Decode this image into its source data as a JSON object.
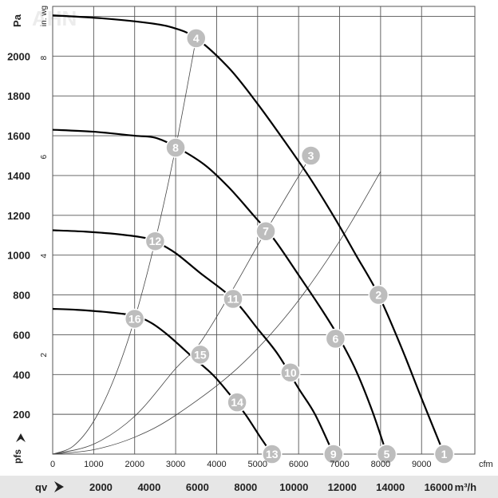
{
  "chart_data": {
    "type": "line",
    "title": "",
    "axes": {
      "pressure_pa": {
        "label": "Pa",
        "ticks": [
          200,
          400,
          600,
          800,
          1000,
          1200,
          1400,
          1600,
          1800,
          2000
        ],
        "range": [
          0,
          2250
        ]
      },
      "pressure_inwg": {
        "label": "in. wg",
        "ticks": [
          2,
          4,
          6,
          8
        ],
        "range": [
          0,
          9.04
        ]
      },
      "flow_cfm": {
        "label": "cfm",
        "ticks": [
          0,
          1000,
          2000,
          3000,
          4000,
          5000,
          6000,
          7000,
          8000,
          9000
        ],
        "range": [
          0,
          10300
        ]
      },
      "flow_m3h": {
        "label": "m³/h",
        "ticks": [
          2000,
          4000,
          6000,
          8000,
          10000,
          12000,
          14000,
          16000
        ],
        "range": [
          0,
          17500
        ]
      }
    },
    "axis_labels": {
      "y_bottom": "pfs",
      "x_bottom": "qv",
      "pa": "Pa",
      "inwg": "in. wg",
      "cfm": "cfm",
      "m3h_suffix": "m³/h"
    },
    "grid": true,
    "series": [
      {
        "curve": "speed-1",
        "x_cfm": [
          0,
          1200,
          2200,
          2900,
          3500,
          4300,
          5000,
          5700,
          6300,
          6900,
          7400,
          7950,
          8500,
          9000,
          9550
        ],
        "y_pa": [
          2205,
          2190,
          2170,
          2145,
          2090,
          1940,
          1760,
          1560,
          1380,
          1180,
          1000,
          800,
          540,
          280,
          0
        ]
      },
      {
        "curve": "speed-2",
        "x_cfm": [
          0,
          1000,
          2000,
          2500,
          3000,
          3700,
          4300,
          4900,
          5400,
          6000,
          6600,
          7000,
          7400,
          7800,
          8150
        ],
        "y_pa": [
          1630,
          1620,
          1600,
          1590,
          1545,
          1455,
          1340,
          1200,
          1080,
          900,
          715,
          580,
          420,
          215,
          0
        ]
      },
      {
        "curve": "speed-3",
        "x_cfm": [
          0,
          800,
          1600,
          2300,
          2500,
          3000,
          3600,
          4400,
          5000,
          5500,
          6000,
          6400,
          6850
        ],
        "y_pa": [
          1125,
          1118,
          1105,
          1085,
          1070,
          1010,
          910,
          780,
          630,
          500,
          330,
          200,
          0
        ]
      },
      {
        "curve": "speed-4",
        "x_cfm": [
          0,
          600,
          1400,
          2000,
          2400,
          2800,
          3400,
          3900,
          4300,
          4700,
          5050,
          5350
        ],
        "y_pa": [
          730,
          725,
          712,
          695,
          660,
          600,
          490,
          400,
          305,
          200,
          90,
          0
        ]
      },
      {
        "curve": "system-a",
        "x_cfm": [
          0,
          500,
          1000,
          1500,
          2000,
          2500,
          3000,
          3500
        ],
        "y_pa": [
          0,
          40,
          165,
          380,
          680,
          1070,
          1540,
          2090
        ]
      },
      {
        "curve": "system-b",
        "x_cfm": [
          0,
          1000,
          2000,
          3000,
          3600,
          4400,
          5200,
          6300
        ],
        "y_pa": [
          0,
          50,
          190,
          430,
          560,
          830,
          1120,
          1500
        ]
      },
      {
        "curve": "system-c",
        "x_cfm": [
          0,
          1000,
          2000,
          3000,
          4500,
          5800,
          7000,
          8000
        ],
        "y_pa": [
          0,
          22,
          85,
          195,
          430,
          720,
          1070,
          1420
        ]
      }
    ],
    "operating_points": [
      {
        "label": "1",
        "x_cfm": 9550,
        "y_pa": 0
      },
      {
        "label": "2",
        "x_cfm": 7950,
        "y_pa": 800
      },
      {
        "label": "3",
        "x_cfm": 6300,
        "y_pa": 1500
      },
      {
        "label": "4",
        "x_cfm": 3500,
        "y_pa": 2090
      },
      {
        "label": "5",
        "x_cfm": 8150,
        "y_pa": 0
      },
      {
        "label": "6",
        "x_cfm": 6900,
        "y_pa": 580
      },
      {
        "label": "7",
        "x_cfm": 5200,
        "y_pa": 1120
      },
      {
        "label": "8",
        "x_cfm": 3000,
        "y_pa": 1540
      },
      {
        "label": "9",
        "x_cfm": 6850,
        "y_pa": 0
      },
      {
        "label": "10",
        "x_cfm": 5800,
        "y_pa": 410
      },
      {
        "label": "11",
        "x_cfm": 4400,
        "y_pa": 780
      },
      {
        "label": "12",
        "x_cfm": 2500,
        "y_pa": 1070
      },
      {
        "label": "13",
        "x_cfm": 5350,
        "y_pa": 0
      },
      {
        "label": "14",
        "x_cfm": 4500,
        "y_pa": 260
      },
      {
        "label": "15",
        "x_cfm": 3600,
        "y_pa": 500
      },
      {
        "label": "16",
        "x_cfm": 2000,
        "y_pa": 680
      }
    ],
    "watermark": "AHN"
  }
}
